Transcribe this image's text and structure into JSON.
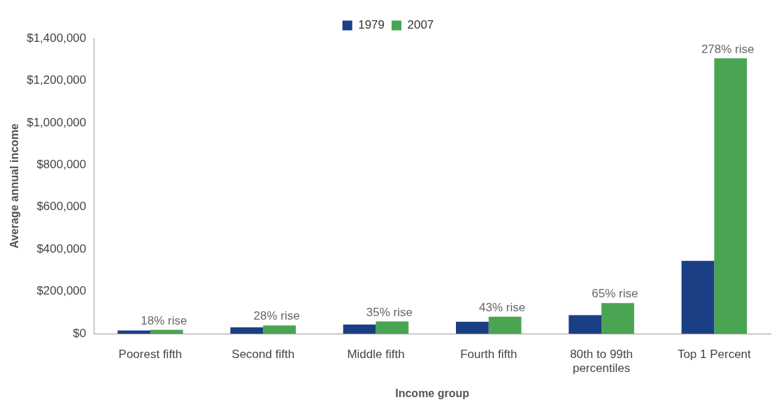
{
  "chart_data": {
    "type": "bar",
    "xlabel": "Income group",
    "ylabel": "Average annual income",
    "categories": [
      "Poorest fifth",
      "Second fifth",
      "Middle fifth",
      "Fourth fifth",
      "80th to 99th percentiles",
      "Top 1 Percent"
    ],
    "series": [
      {
        "name": "1979",
        "color": "#1b3f84",
        "values": [
          15000,
          30000,
          43000,
          56000,
          88000,
          345000
        ]
      },
      {
        "name": "2007",
        "color": "#4aa553",
        "values": [
          18000,
          39000,
          58000,
          80000,
          145000,
          1306000
        ]
      }
    ],
    "ylim": [
      0,
      1400000
    ],
    "yticks": [
      {
        "value": 0,
        "label": "$0"
      },
      {
        "value": 200000,
        "label": "$200,000"
      },
      {
        "value": 400000,
        "label": "$400,000"
      },
      {
        "value": 600000,
        "label": "$600,000"
      },
      {
        "value": 800000,
        "label": "$800,000"
      },
      {
        "value": 1000000,
        "label": "$1,000,000"
      },
      {
        "value": 1200000,
        "label": "$1,200,000"
      },
      {
        "value": 1400000,
        "label": "$1,400,000"
      }
    ],
    "annotations": [
      {
        "text": "18% rise",
        "x": "Poorest fifth",
        "y": 18000
      },
      {
        "text": "28% rise",
        "x": "Second fifth",
        "y": 39000
      },
      {
        "text": "35% rise",
        "x": "Middle fifth",
        "y": 58000
      },
      {
        "text": "43% rise",
        "x": "Fourth fifth",
        "y": 80000
      },
      {
        "text": "65% rise",
        "x": "80th to 99th percentiles",
        "y": 145000
      },
      {
        "text": "278% rise",
        "x": "Top 1 Percent",
        "y": 1306000
      }
    ],
    "grid": false,
    "legend": "top"
  }
}
